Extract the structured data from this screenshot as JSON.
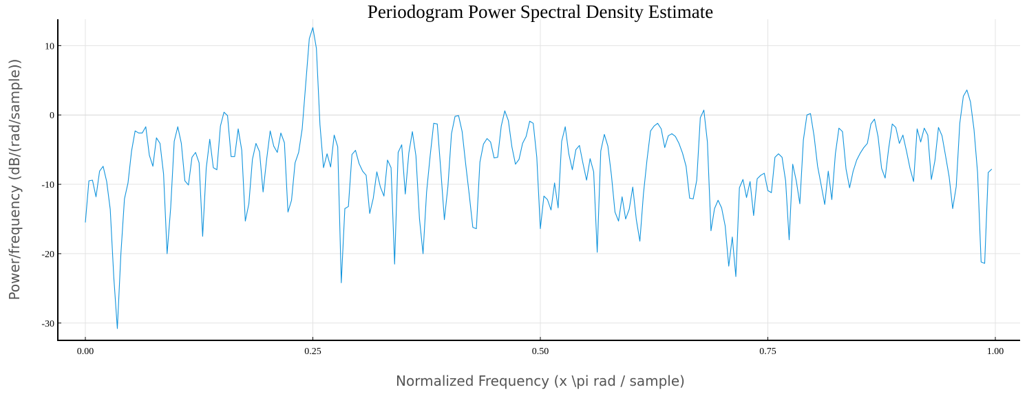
{
  "chart_data": {
    "type": "line",
    "title": "Periodogram Power Spectral Density Estimate",
    "xlabel": "Normalized Frequency (x \\pi rad / sample)",
    "ylabel": "Power/frequency (dB/(rad/sample))",
    "xlim": [
      0,
      1
    ],
    "ylim": [
      -32.5,
      13.8
    ],
    "grid": true,
    "legend": "none",
    "xticks": [
      0,
      0.25,
      0.5,
      0.75,
      1.0
    ],
    "xtick_labels": [
      "0.00",
      "0.25",
      "0.50",
      "0.75",
      "1.00"
    ],
    "yticks": [
      10,
      0,
      -10,
      -20,
      -30
    ],
    "ytick_labels": [
      "10",
      "0",
      "-10",
      "-20",
      "-30"
    ],
    "series": [
      {
        "color": "#0f93dc",
        "x_step": 0.00390625,
        "values": [
          -15.5,
          -9.5,
          -9.4,
          -11.8,
          -8.1,
          -7.4,
          -9.6,
          -13.6,
          -23.4,
          -30.8,
          -20.0,
          -12.1,
          -9.8,
          -5.2,
          -2.3,
          -2.6,
          -2.6,
          -1.7,
          -5.8,
          -7.4,
          -3.3,
          -4.1,
          -8.5,
          -20.0,
          -13.4,
          -3.8,
          -1.7,
          -4.1,
          -9.5,
          -10.1,
          -6.1,
          -5.4,
          -6.9,
          -17.5,
          -7.7,
          -3.5,
          -7.6,
          -7.9,
          -1.6,
          0.4,
          -0.1,
          -6.0,
          -6.0,
          -2.0,
          -5.1,
          -15.3,
          -12.8,
          -6.4,
          -4.1,
          -5.3,
          -11.1,
          -6.4,
          -2.3,
          -4.5,
          -5.4,
          -2.6,
          -4.0,
          -14.0,
          -12.3,
          -6.9,
          -5.4,
          -2.0,
          4.5,
          11.0,
          12.6,
          9.6,
          -1.4,
          -7.6,
          -5.6,
          -7.5,
          -2.9,
          -4.6,
          -24.2,
          -13.5,
          -13.2,
          -5.7,
          -5.1,
          -7.0,
          -8.1,
          -8.7,
          -14.2,
          -12.0,
          -8.2,
          -10.4,
          -11.7,
          -6.5,
          -7.6,
          -21.5,
          -5.4,
          -4.3,
          -11.4,
          -5.5,
          -2.4,
          -5.9,
          -15.0,
          -20.0,
          -11.1,
          -5.9,
          -1.2,
          -1.3,
          -8.0,
          -15.1,
          -10.3,
          -2.7,
          -0.2,
          -0.1,
          -2.4,
          -7.1,
          -11.5,
          -16.2,
          -16.4,
          -6.8,
          -4.2,
          -3.4,
          -3.9,
          -6.2,
          -6.1,
          -1.6,
          0.6,
          -0.8,
          -4.6,
          -7.1,
          -6.4,
          -4.1,
          -3.1,
          -0.9,
          -1.2,
          -6.1,
          -16.4,
          -11.7,
          -12.2,
          -13.7,
          -9.8,
          -13.4,
          -3.8,
          -1.7,
          -5.6,
          -7.9,
          -5.0,
          -4.4,
          -7.0,
          -9.4,
          -6.3,
          -8.2,
          -19.8,
          -5.2,
          -2.8,
          -4.5,
          -8.7,
          -14.0,
          -15.3,
          -11.8,
          -15.0,
          -13.6,
          -10.4,
          -15.1,
          -18.2,
          -11.4,
          -6.5,
          -2.3,
          -1.6,
          -1.2,
          -2.0,
          -4.7,
          -3.0,
          -2.7,
          -3.1,
          -4.1,
          -5.5,
          -7.4,
          -12.0,
          -12.1,
          -9.4,
          -0.4,
          0.7,
          -3.9,
          -16.7,
          -13.5,
          -12.3,
          -13.4,
          -16.0,
          -21.8,
          -17.6,
          -23.3,
          -10.5,
          -9.3,
          -11.9,
          -9.6,
          -14.5,
          -9.2,
          -8.7,
          -8.4,
          -10.9,
          -11.2,
          -6.1,
          -5.6,
          -6.1,
          -9.5,
          -18.0,
          -7.1,
          -9.5,
          -12.8,
          -3.6,
          0.0,
          0.2,
          -3.0,
          -7.4,
          -10.1,
          -12.9,
          -8.1,
          -12.2,
          -5.6,
          -1.9,
          -2.4,
          -7.8,
          -10.5,
          -8.1,
          -6.5,
          -5.5,
          -4.7,
          -4.1,
          -1.3,
          -0.6,
          -3.1,
          -7.7,
          -9.1,
          -4.8,
          -1.3,
          -1.8,
          -4.1,
          -2.9,
          -5.2,
          -7.7,
          -9.6,
          -2.0,
          -3.9,
          -1.9,
          -2.9,
          -9.3,
          -6.6,
          -1.8,
          -3.0,
          -5.9,
          -8.9,
          -13.5,
          -10.3,
          -1.2,
          2.7,
          3.6,
          1.9,
          -2.1,
          -8.3,
          -21.2,
          -21.4,
          -8.3,
          -7.8
        ]
      }
    ]
  }
}
